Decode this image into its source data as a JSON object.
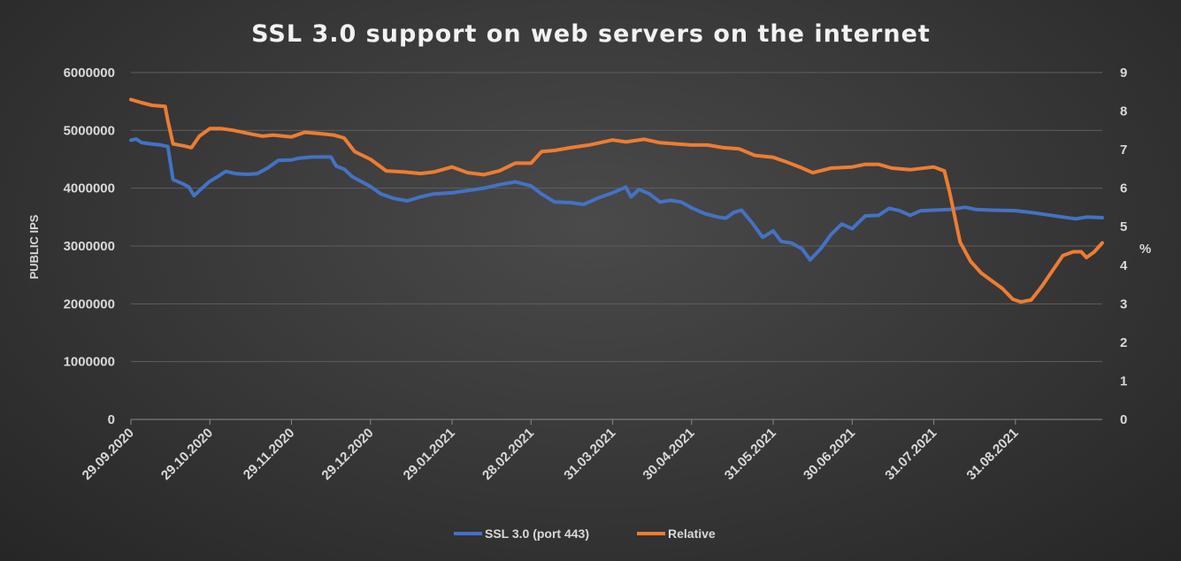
{
  "chart_data": {
    "type": "line",
    "title": "SSL 3.0 support on web servers on the internet",
    "ylabel": "PUBLIC IPS",
    "y2label": "%",
    "ylim": [
      0,
      6000000
    ],
    "y2lim": [
      0,
      9
    ],
    "yticks": [
      "0",
      "1000000",
      "2000000",
      "3000000",
      "4000000",
      "5000000",
      "6000000"
    ],
    "y2ticks": [
      "0",
      "1",
      "2",
      "3",
      "4",
      "5",
      "6",
      "7",
      "8",
      "9"
    ],
    "xticks": [
      "29.09.2020",
      "29.10.2020",
      "29.11.2020",
      "29.12.2020",
      "29.01.2021",
      "28.02.2021",
      "31.03.2021",
      "30.04.2021",
      "31.05.2021",
      "30.06.2021",
      "31.07.2021",
      "31.08.2021"
    ],
    "xlim": [
      "29.09.2020",
      "03.10.2021"
    ],
    "grid": true,
    "legend_position": "bottom",
    "series": [
      {
        "name": "SSL 3.0 (port 443)",
        "axis": "left",
        "color": "#4472c4",
        "points": [
          [
            "29.09.2020",
            4830000
          ],
          [
            "01.10.2020",
            4850000
          ],
          [
            "03.10.2020",
            4790000
          ],
          [
            "06.10.2020",
            4770000
          ],
          [
            "10.10.2020",
            4750000
          ],
          [
            "13.10.2020",
            4720000
          ],
          [
            "15.10.2020",
            4150000
          ],
          [
            "19.10.2020",
            4070000
          ],
          [
            "21.10.2020",
            4020000
          ],
          [
            "23.10.2020",
            3870000
          ],
          [
            "26.10.2020",
            4000000
          ],
          [
            "29.10.2020",
            4120000
          ],
          [
            "01.11.2020",
            4200000
          ],
          [
            "04.11.2020",
            4290000
          ],
          [
            "08.11.2020",
            4250000
          ],
          [
            "12.11.2020",
            4240000
          ],
          [
            "16.11.2020",
            4250000
          ],
          [
            "20.11.2020",
            4350000
          ],
          [
            "24.11.2020",
            4480000
          ],
          [
            "29.11.2020",
            4490000
          ],
          [
            "02.12.2020",
            4520000
          ],
          [
            "07.12.2020",
            4540000
          ],
          [
            "14.12.2020",
            4540000
          ],
          [
            "16.12.2020",
            4380000
          ],
          [
            "19.12.2020",
            4330000
          ],
          [
            "22.12.2020",
            4200000
          ],
          [
            "29.12.2020",
            4030000
          ],
          [
            "02.01.2021",
            3900000
          ],
          [
            "07.01.2021",
            3820000
          ],
          [
            "12.01.2021",
            3780000
          ],
          [
            "17.01.2021",
            3850000
          ],
          [
            "22.01.2021",
            3900000
          ],
          [
            "29.01.2021",
            3920000
          ],
          [
            "04.02.2021",
            3960000
          ],
          [
            "10.02.2021",
            4000000
          ],
          [
            "16.02.2021",
            4060000
          ],
          [
            "22.02.2021",
            4110000
          ],
          [
            "28.02.2021",
            4040000
          ],
          [
            "04.03.2021",
            3900000
          ],
          [
            "09.03.2021",
            3760000
          ],
          [
            "15.03.2021",
            3750000
          ],
          [
            "20.03.2021",
            3720000
          ],
          [
            "26.03.2021",
            3840000
          ],
          [
            "31.03.2021",
            3920000
          ],
          [
            "05.04.2021",
            4020000
          ],
          [
            "07.04.2021",
            3850000
          ],
          [
            "10.04.2021",
            3980000
          ],
          [
            "14.04.2021",
            3900000
          ],
          [
            "18.04.2021",
            3760000
          ],
          [
            "22.04.2021",
            3790000
          ],
          [
            "26.04.2021",
            3760000
          ],
          [
            "30.04.2021",
            3660000
          ],
          [
            "05.05.2021",
            3560000
          ],
          [
            "10.05.2021",
            3500000
          ],
          [
            "13.05.2021",
            3480000
          ],
          [
            "16.05.2021",
            3580000
          ],
          [
            "19.05.2021",
            3620000
          ],
          [
            "23.05.2021",
            3400000
          ],
          [
            "27.05.2021",
            3150000
          ],
          [
            "31.05.2021",
            3260000
          ],
          [
            "03.06.2021",
            3080000
          ],
          [
            "07.06.2021",
            3050000
          ],
          [
            "11.06.2021",
            2950000
          ],
          [
            "14.06.2021",
            2760000
          ],
          [
            "18.06.2021",
            2950000
          ],
          [
            "22.06.2021",
            3200000
          ],
          [
            "26.06.2021",
            3380000
          ],
          [
            "30.06.2021",
            3300000
          ],
          [
            "05.07.2021",
            3520000
          ],
          [
            "10.07.2021",
            3530000
          ],
          [
            "14.07.2021",
            3650000
          ],
          [
            "18.07.2021",
            3610000
          ],
          [
            "22.07.2021",
            3530000
          ],
          [
            "26.07.2021",
            3610000
          ],
          [
            "31.07.2021",
            3620000
          ],
          [
            "06.08.2021",
            3630000
          ],
          [
            "12.08.2021",
            3670000
          ],
          [
            "16.08.2021",
            3630000
          ],
          [
            "22.08.2021",
            3620000
          ],
          [
            "31.08.2021",
            3610000
          ],
          [
            "06.09.2021",
            3580000
          ],
          [
            "12.09.2021",
            3540000
          ],
          [
            "18.09.2021",
            3500000
          ],
          [
            "23.09.2021",
            3470000
          ],
          [
            "27.09.2021",
            3500000
          ],
          [
            "03.10.2021",
            3490000
          ]
        ]
      },
      {
        "name": "Relative",
        "axis": "right",
        "color": "#ed7d31",
        "points": [
          [
            "29.09.2020",
            8.3
          ],
          [
            "03.10.2020",
            8.22
          ],
          [
            "07.10.2020",
            8.15
          ],
          [
            "12.10.2020",
            8.12
          ],
          [
            "13.10.2020",
            7.75
          ],
          [
            "15.10.2020",
            7.15
          ],
          [
            "19.10.2020",
            7.1
          ],
          [
            "22.10.2020",
            7.05
          ],
          [
            "25.10.2020",
            7.35
          ],
          [
            "29.10.2020",
            7.55
          ],
          [
            "02.11.2020",
            7.55
          ],
          [
            "07.11.2020",
            7.5
          ],
          [
            "14.11.2020",
            7.4
          ],
          [
            "18.11.2020",
            7.35
          ],
          [
            "22.11.2020",
            7.38
          ],
          [
            "29.11.2020",
            7.33
          ],
          [
            "04.12.2020",
            7.45
          ],
          [
            "09.12.2020",
            7.42
          ],
          [
            "15.12.2020",
            7.38
          ],
          [
            "19.12.2020",
            7.3
          ],
          [
            "23.12.2020",
            6.95
          ],
          [
            "29.12.2020",
            6.75
          ],
          [
            "04.01.2021",
            6.45
          ],
          [
            "11.01.2021",
            6.42
          ],
          [
            "17.01.2021",
            6.38
          ],
          [
            "22.01.2021",
            6.42
          ],
          [
            "29.01.2021",
            6.55
          ],
          [
            "04.02.2021",
            6.4
          ],
          [
            "10.02.2021",
            6.35
          ],
          [
            "16.02.2021",
            6.45
          ],
          [
            "22.02.2021",
            6.65
          ],
          [
            "28.02.2021",
            6.65
          ],
          [
            "04.03.2021",
            6.95
          ],
          [
            "09.03.2021",
            6.98
          ],
          [
            "15.03.2021",
            7.05
          ],
          [
            "22.03.2021",
            7.12
          ],
          [
            "31.03.2021",
            7.25
          ],
          [
            "05.04.2021",
            7.2
          ],
          [
            "12.04.2021",
            7.27
          ],
          [
            "18.04.2021",
            7.18
          ],
          [
            "24.04.2021",
            7.15
          ],
          [
            "30.04.2021",
            7.12
          ],
          [
            "06.05.2021",
            7.12
          ],
          [
            "12.05.2021",
            7.05
          ],
          [
            "18.05.2021",
            7.02
          ],
          [
            "24.05.2021",
            6.85
          ],
          [
            "31.05.2021",
            6.8
          ],
          [
            "05.06.2021",
            6.68
          ],
          [
            "10.06.2021",
            6.55
          ],
          [
            "15.06.2021",
            6.4
          ],
          [
            "22.06.2021",
            6.52
          ],
          [
            "30.06.2021",
            6.55
          ],
          [
            "05.07.2021",
            6.62
          ],
          [
            "10.07.2021",
            6.62
          ],
          [
            "15.07.2021",
            6.52
          ],
          [
            "22.07.2021",
            6.48
          ],
          [
            "31.07.2021",
            6.55
          ],
          [
            "04.08.2021",
            6.45
          ],
          [
            "06.08.2021",
            5.9
          ],
          [
            "10.08.2021",
            4.6
          ],
          [
            "14.08.2021",
            4.1
          ],
          [
            "18.08.2021",
            3.8
          ],
          [
            "22.08.2021",
            3.6
          ],
          [
            "26.08.2021",
            3.4
          ],
          [
            "30.08.2021",
            3.12
          ],
          [
            "02.09.2021",
            3.05
          ],
          [
            "06.09.2021",
            3.1
          ],
          [
            "10.09.2021",
            3.45
          ],
          [
            "14.09.2021",
            3.85
          ],
          [
            "18.09.2021",
            4.25
          ],
          [
            "22.09.2021",
            4.35
          ],
          [
            "25.09.2021",
            4.35
          ],
          [
            "27.09.2021",
            4.2
          ],
          [
            "30.09.2021",
            4.35
          ],
          [
            "03.10.2021",
            4.58
          ]
        ]
      }
    ]
  }
}
